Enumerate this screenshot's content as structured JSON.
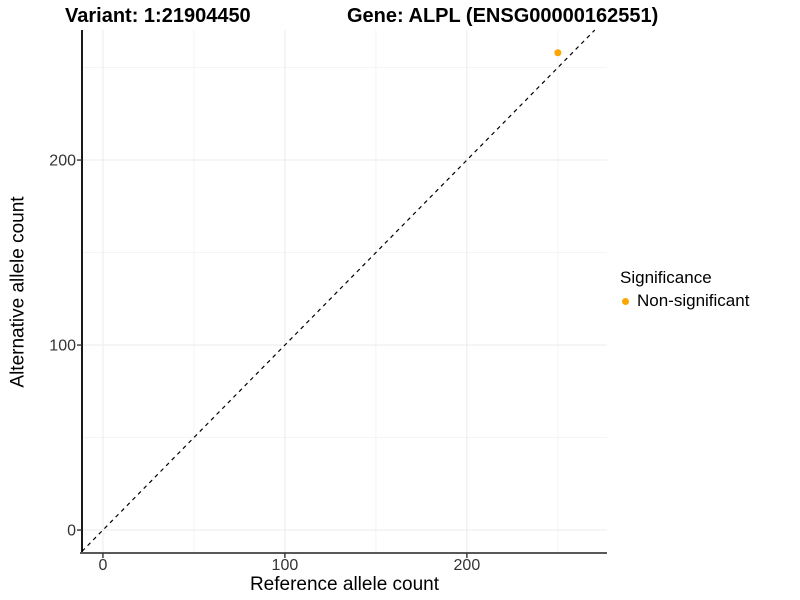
{
  "chart_data": {
    "type": "scatter",
    "title_left": "Variant: 1:21904450",
    "title_right": "Gene: ALPL (ENSG00000162551)",
    "xlabel": "Reference allele count",
    "ylabel": "Alternative allele count",
    "xlim": [
      -11.5,
      277
    ],
    "ylim": [
      -12.4,
      270.3
    ],
    "x_ticks": [
      0,
      100,
      200
    ],
    "y_ticks": [
      0,
      100,
      200
    ],
    "x_minor_ticks": [
      50,
      150,
      250
    ],
    "y_minor_ticks": [
      50,
      150,
      250
    ],
    "grid": "major and minor, very light gray, white panel background",
    "series": [
      {
        "name": "Non-significant",
        "color": "#FFA500",
        "point_radius": 3.5,
        "points": [
          [
            250,
            258
          ]
        ]
      }
    ],
    "reference_line": {
      "kind": "identity y=x",
      "style": "dashed",
      "stroke": "#000000",
      "dash": [
        4,
        4
      ]
    },
    "legend": {
      "position": "right",
      "title": "Significance",
      "entries": [
        {
          "label": "Non-significant",
          "color": "#FFA500"
        }
      ]
    },
    "colors": {
      "grid_major": "#ebebeb",
      "grid_minor": "#f4f4f4",
      "axis_line_y": "#000000",
      "axis_line_x": "#595959",
      "tick": "#333333",
      "tick_label": "#333333",
      "point": "#FFA500"
    }
  }
}
